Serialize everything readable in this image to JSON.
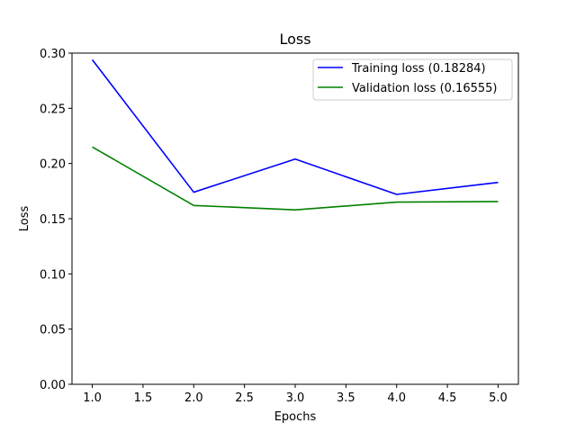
{
  "chart_data": {
    "type": "line",
    "title": "Loss",
    "xlabel": "Epochs",
    "ylabel": "Loss",
    "xlim": [
      0.8,
      5.2
    ],
    "ylim": [
      0.0,
      0.3
    ],
    "xticks": [
      1.0,
      1.5,
      2.0,
      2.5,
      3.0,
      3.5,
      4.0,
      4.5,
      5.0
    ],
    "xtick_labels": [
      "1.0",
      "1.5",
      "2.0",
      "2.5",
      "3.0",
      "3.5",
      "4.0",
      "4.5",
      "5.0"
    ],
    "yticks": [
      0.0,
      0.05,
      0.1,
      0.15,
      0.2,
      0.25,
      0.3
    ],
    "ytick_labels": [
      "0.00",
      "0.05",
      "0.10",
      "0.15",
      "0.20",
      "0.25",
      "0.30"
    ],
    "grid": false,
    "legend": "top-right",
    "x": [
      1,
      2,
      3,
      4,
      5
    ],
    "series": [
      {
        "name": "Training loss (0.18284)",
        "color": "#0000ff",
        "values": [
          0.294,
          0.174,
          0.204,
          0.172,
          0.18284
        ]
      },
      {
        "name": "Validation loss (0.16555)",
        "color": "#008000",
        "values": [
          0.215,
          0.162,
          0.158,
          0.165,
          0.16555
        ]
      }
    ]
  }
}
